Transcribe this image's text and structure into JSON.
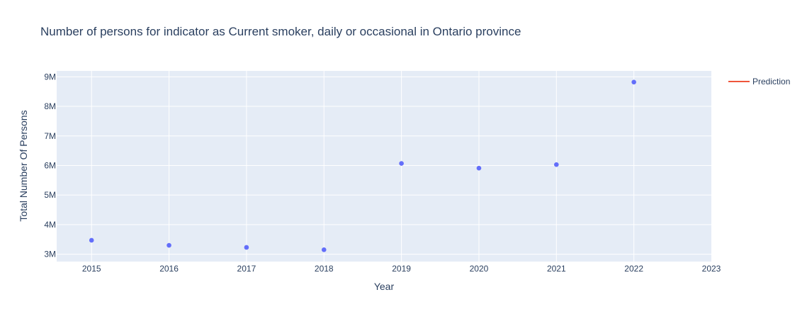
{
  "chart_data": {
    "type": "scatter",
    "title": "Number of persons for indicator as Current smoker, daily or occasional in Ontario province",
    "xlabel": "Year",
    "ylabel": "Total Number Of Persons",
    "x_ticks": [
      "2015",
      "2016",
      "2017",
      "2018",
      "2019",
      "2020",
      "2021",
      "2022",
      "2023"
    ],
    "y_ticks": [
      "3M",
      "4M",
      "5M",
      "6M",
      "7M",
      "8M",
      "9M"
    ],
    "y_tick_values": [
      3000000,
      4000000,
      5000000,
      6000000,
      7000000,
      8000000,
      9000000
    ],
    "xlim": [
      2014.55,
      2023.0
    ],
    "ylim": [
      2750000,
      9200000
    ],
    "grid": true,
    "legend_position": "top-right",
    "series": [
      {
        "name": "",
        "mode": "markers",
        "color": "#636efa",
        "x": [
          2015,
          2016,
          2017,
          2018,
          2019,
          2020,
          2021,
          2022
        ],
        "y": [
          3470000,
          3300000,
          3230000,
          3150000,
          6070000,
          5910000,
          6030000,
          8820000
        ]
      },
      {
        "name": "Prediction",
        "mode": "lines",
        "color": "#ef553b",
        "x": [],
        "y": []
      }
    ],
    "colors": {
      "plot_bg": "#e5ecf6",
      "grid": "#ffffff",
      "text": "#2a3f5f",
      "marker": "#636efa",
      "prediction": "#ef553b"
    }
  }
}
